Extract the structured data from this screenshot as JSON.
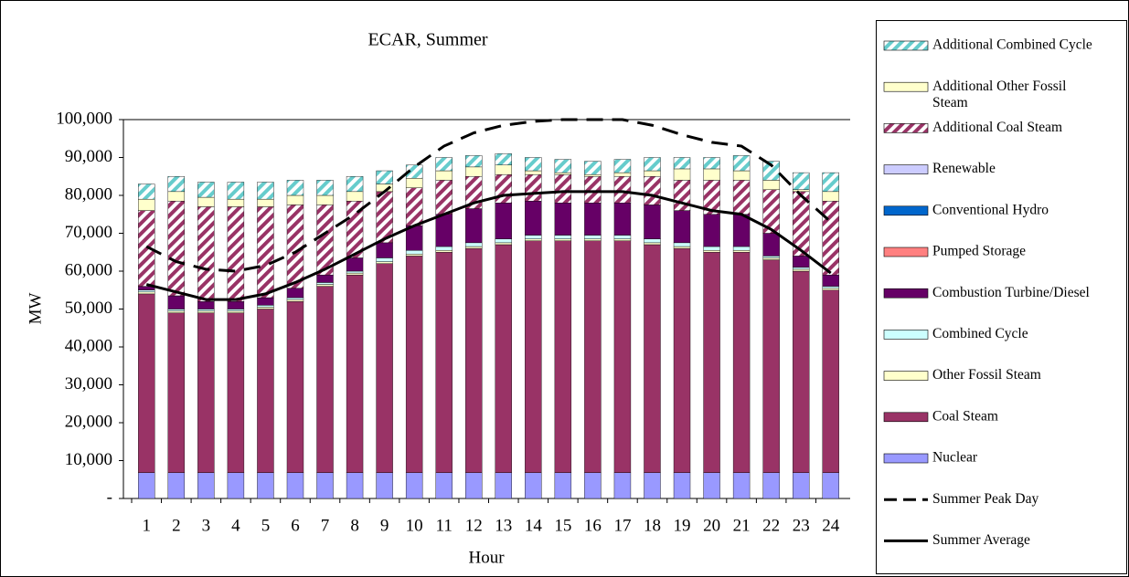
{
  "chart_data": {
    "type": "bar",
    "stacked": true,
    "title": "ECAR, Summer",
    "y_label": "MW",
    "x_label": "Hour",
    "categories": [
      "1",
      "2",
      "3",
      "4",
      "5",
      "6",
      "7",
      "8",
      "9",
      "10",
      "11",
      "12",
      "13",
      "14",
      "15",
      "16",
      "17",
      "18",
      "19",
      "20",
      "21",
      "22",
      "23",
      "24"
    ],
    "ylim": [
      0,
      100000
    ],
    "yticks": [
      {
        "value": 0,
        "label": "-"
      },
      {
        "value": 10000,
        "label": "10,000"
      },
      {
        "value": 20000,
        "label": "20,000"
      },
      {
        "value": 30000,
        "label": "30,000"
      },
      {
        "value": 40000,
        "label": "40,000"
      },
      {
        "value": 50000,
        "label": "50,000"
      },
      {
        "value": 60000,
        "label": "60,000"
      },
      {
        "value": 70000,
        "label": "70,000"
      },
      {
        "value": 80000,
        "label": "80,000"
      },
      {
        "value": 90000,
        "label": "90,000"
      },
      {
        "value": 100000,
        "label": "100,000"
      }
    ],
    "grid": false,
    "legend": "right",
    "series": [
      {
        "name": "Nuclear",
        "color": "#9999ff",
        "values": [
          6800,
          6800,
          6800,
          6800,
          6800,
          6800,
          6800,
          6800,
          6800,
          6800,
          6800,
          6800,
          6800,
          6800,
          6800,
          6800,
          6800,
          6800,
          6800,
          6800,
          6800,
          6800,
          6800,
          6800
        ]
      },
      {
        "name": "Coal Steam",
        "color": "#993366",
        "values": [
          47200,
          42200,
          42200,
          42200,
          43200,
          45200,
          49200,
          52200,
          55200,
          57200,
          58200,
          59200,
          60200,
          61200,
          61200,
          61200,
          61200,
          60200,
          59200,
          58200,
          58200,
          56200,
          53200,
          48200
        ]
      },
      {
        "name": "Other Fossil Steam",
        "color": "#ffffcc",
        "values": [
          500,
          500,
          500,
          500,
          500,
          500,
          500,
          500,
          500,
          500,
          500,
          500,
          500,
          500,
          500,
          500,
          500,
          500,
          500,
          500,
          500,
          500,
          500,
          500
        ]
      },
      {
        "name": "Combined Cycle",
        "color": "#ccffff",
        "values": [
          500,
          500,
          500,
          500,
          500,
          500,
          500,
          500,
          1000,
          1000,
          1000,
          1000,
          1000,
          1000,
          1000,
          1000,
          1000,
          1000,
          1000,
          1000,
          1000,
          500,
          500,
          500
        ]
      },
      {
        "name": "Combustion Turbine/Diesel",
        "color": "#660066",
        "values": [
          1000,
          3500,
          2000,
          2000,
          2000,
          2500,
          2000,
          3500,
          4000,
          6500,
          8500,
          9000,
          9500,
          9000,
          8500,
          8500,
          8500,
          9000,
          8500,
          8500,
          8500,
          6000,
          3000,
          3000
        ]
      },
      {
        "name": "Pumped Storage",
        "color": "#ff8080",
        "values": [
          0,
          0,
          0,
          0,
          0,
          0,
          0,
          0,
          0,
          0,
          0,
          0,
          0,
          0,
          0,
          0,
          0,
          0,
          0,
          0,
          0,
          0,
          0,
          0
        ]
      },
      {
        "name": "Conventional Hydro",
        "color": "#0066cc",
        "values": [
          0,
          0,
          0,
          0,
          0,
          0,
          0,
          0,
          0,
          0,
          0,
          0,
          0,
          0,
          0,
          0,
          0,
          0,
          0,
          0,
          0,
          0,
          0,
          0
        ]
      },
      {
        "name": "Renewable",
        "color": "#ccccff",
        "values": [
          0,
          0,
          0,
          0,
          0,
          0,
          0,
          0,
          0,
          0,
          0,
          0,
          0,
          0,
          0,
          0,
          0,
          0,
          0,
          0,
          0,
          0,
          0,
          0
        ]
      },
      {
        "name": "Additional Coal Steam",
        "color": "#993366",
        "hatch": true,
        "values": [
          20000,
          25000,
          25000,
          25000,
          24000,
          22000,
          18500,
          15000,
          13500,
          10000,
          9000,
          8500,
          7500,
          7000,
          7500,
          7000,
          7000,
          7500,
          8000,
          9000,
          9000,
          11500,
          17000,
          19500
        ]
      },
      {
        "name": "Additional Other Fossil Steam",
        "color": "#ffffcc",
        "values": [
          3000,
          2500,
          2500,
          2000,
          2000,
          2500,
          2500,
          2500,
          2000,
          2500,
          2500,
          2500,
          2500,
          1000,
          500,
          500,
          1000,
          1500,
          3000,
          3000,
          2500,
          2500,
          500,
          2500
        ]
      },
      {
        "name": "Additional Combined Cycle",
        "color": "#66cccc",
        "hatch": true,
        "values": [
          4000,
          4000,
          4000,
          4500,
          4500,
          4000,
          4000,
          4000,
          3500,
          3500,
          3500,
          3000,
          3000,
          3500,
          3500,
          3500,
          3500,
          3500,
          3000,
          3000,
          4000,
          5000,
          4500,
          5000
        ]
      },
      {
        "name": "Summer Peak Day",
        "type": "line",
        "color": "#000000",
        "dashed": true,
        "values": [
          66500,
          62500,
          60500,
          60000,
          61500,
          65000,
          70000,
          75000,
          81000,
          87500,
          93000,
          96500,
          98500,
          99500,
          100000,
          100000,
          100000,
          98500,
          96000,
          94000,
          93000,
          88000,
          80000,
          73000
        ]
      },
      {
        "name": "Summer Average",
        "type": "line",
        "color": "#000000",
        "dashed": false,
        "values": [
          56500,
          54500,
          52500,
          52500,
          54000,
          57000,
          60500,
          64500,
          68500,
          72000,
          75000,
          78000,
          80000,
          80500,
          81000,
          81000,
          81000,
          80000,
          78000,
          76000,
          75000,
          71000,
          65500,
          59500
        ]
      }
    ]
  }
}
